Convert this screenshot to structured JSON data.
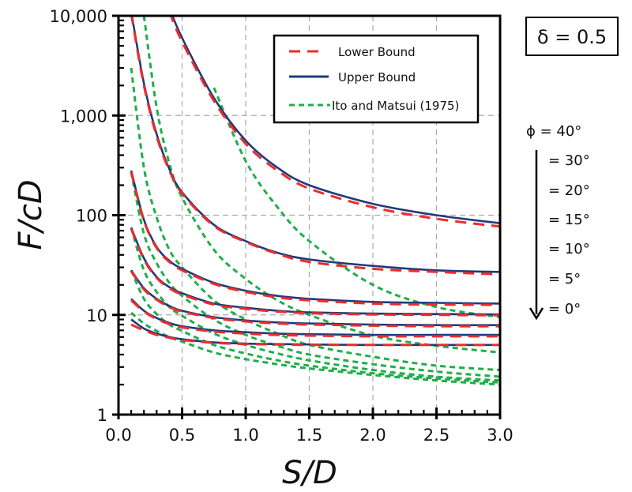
{
  "chart_data": {
    "type": "line",
    "title": "",
    "xlabel": "S/D",
    "ylabel": "F/cD",
    "xlim": [
      0,
      3.0
    ],
    "ylim": [
      1,
      10000
    ],
    "yscale": "log",
    "grid": true,
    "x_ticks": [
      0.0,
      0.5,
      1.0,
      1.5,
      2.0,
      2.5,
      3.0
    ],
    "x_tick_labels": [
      "0.0",
      "0.5",
      "1.0",
      "1.5",
      "2.0",
      "2.5",
      "3.0"
    ],
    "y_ticks": [
      1,
      10,
      100,
      1000,
      10000
    ],
    "y_tick_labels": [
      "1",
      "10",
      "100",
      "1,000",
      "10,000"
    ],
    "legend": {
      "placement": "top-center",
      "entries": [
        {
          "label": "Lower Bound",
          "color": "#ee2b2b",
          "style": "dashed"
        },
        {
          "label": "Upper Bound",
          "color": "#1f3a78",
          "style": "solid"
        },
        {
          "label": "Ito and Matsui (1975)",
          "color": "#1fae4a",
          "style": "dotted-dashed"
        }
      ]
    },
    "annotation_delta": "δ = 0.5",
    "phi_labels": [
      "ϕ = 40°",
      "= 30°",
      "= 20°",
      "= 15°",
      "= 10°",
      "= 5°",
      "= 0°"
    ],
    "x": [
      0.1,
      0.2,
      0.3,
      0.4,
      0.5,
      0.75,
      1.0,
      1.25,
      1.5,
      2.0,
      2.5,
      3.0
    ],
    "series": [
      {
        "name": "Upper Bound φ=40°",
        "group": "upper",
        "values": [
          null,
          null,
          null,
          12000,
          6000,
          1500,
          560,
          300,
          200,
          130,
          100,
          83
        ]
      },
      {
        "name": "Lower Bound φ=40°",
        "group": "lower",
        "values": [
          null,
          null,
          null,
          11000,
          5500,
          1400,
          520,
          280,
          185,
          120,
          92,
          77
        ]
      },
      {
        "name": "Ito and Matsui φ=40°",
        "group": "ito",
        "values": [
          null,
          null,
          null,
          null,
          null,
          1900,
          350,
          120,
          55,
          20,
          12,
          9.5
        ]
      },
      {
        "name": "Upper Bound φ=30°",
        "group": "upper",
        "values": [
          11000,
          2100,
          650,
          290,
          170,
          80,
          55,
          42,
          36,
          31,
          28,
          27
        ]
      },
      {
        "name": "Lower Bound φ=30°",
        "group": "lower",
        "values": [
          10500,
          2000,
          620,
          280,
          165,
          78,
          54,
          41,
          34,
          29,
          27,
          25.5
        ]
      },
      {
        "name": "Ito and Matsui φ=30°",
        "group": "ito",
        "values": [
          null,
          10000,
          1200,
          330,
          150,
          45,
          23,
          14,
          10,
          6.2,
          4.9,
          4.2
        ]
      },
      {
        "name": "Upper Bound φ=20°",
        "group": "upper",
        "values": [
          280,
          90,
          48,
          35,
          29,
          21,
          17.5,
          15.5,
          14.5,
          13.5,
          13.2,
          13
        ]
      },
      {
        "name": "Lower Bound φ=20°",
        "group": "lower",
        "values": [
          270,
          88,
          47,
          34,
          28,
          20.5,
          17,
          15,
          14,
          13,
          12.7,
          12.6
        ]
      },
      {
        "name": "Ito and Matsui φ=20°",
        "group": "ito",
        "values": [
          3000,
          300,
          95,
          45,
          30,
          14,
          9,
          6.5,
          5,
          3.8,
          3.1,
          2.8
        ]
      },
      {
        "name": "Upper Bound φ=15°",
        "group": "upper",
        "values": [
          75,
          37,
          24,
          19,
          16.5,
          13,
          11.8,
          11,
          10.6,
          10.3,
          10.2,
          10.1
        ]
      },
      {
        "name": "Lower Bound φ=15°",
        "group": "lower",
        "values": [
          73,
          36,
          23.5,
          18.5,
          16,
          12.7,
          11.5,
          10.8,
          10.4,
          10.1,
          10,
          9.9
        ]
      },
      {
        "name": "Ito and Matsui φ=15°",
        "group": "ito",
        "values": [
          270,
          65,
          33,
          21,
          15.5,
          9,
          6.3,
          4.9,
          4,
          3.2,
          2.7,
          2.4
        ]
      },
      {
        "name": "Upper Bound φ=10°",
        "group": "upper",
        "values": [
          28,
          18.5,
          14.5,
          12.3,
          11,
          9.5,
          8.8,
          8.4,
          8.2,
          8.0,
          7.9,
          7.9
        ]
      },
      {
        "name": "Lower Bound φ=10°",
        "group": "lower",
        "values": [
          27.5,
          18,
          14.2,
          12,
          10.8,
          9.3,
          8.6,
          8.2,
          8.0,
          7.8,
          7.7,
          7.7
        ]
      },
      {
        "name": "Ito and Matsui φ=10°",
        "group": "ito",
        "values": [
          75,
          28,
          17,
          12,
          9.8,
          6.5,
          5,
          4.1,
          3.5,
          2.8,
          2.4,
          2.2
        ]
      },
      {
        "name": "Upper Bound φ=5°",
        "group": "upper",
        "values": [
          14.5,
          11,
          9.3,
          8.3,
          7.7,
          7,
          6.7,
          6.5,
          6.4,
          6.3,
          6.3,
          6.3
        ]
      },
      {
        "name": "Lower Bound φ=5°",
        "group": "lower",
        "values": [
          14,
          10.8,
          9.1,
          8.1,
          7.5,
          6.8,
          6.5,
          6.3,
          6.2,
          6.1,
          6.1,
          6.1
        ]
      },
      {
        "name": "Ito and Matsui φ=5°",
        "group": "ito",
        "values": [
          28,
          14.5,
          10.2,
          8,
          6.9,
          5,
          4.1,
          3.5,
          3.1,
          2.6,
          2.3,
          2.1
        ]
      },
      {
        "name": "Upper Bound φ=0°",
        "group": "upper",
        "values": [
          9,
          7.3,
          6.5,
          6,
          5.7,
          5.3,
          5.15,
          5.1,
          5.05,
          5.0,
          5.0,
          5.0
        ]
      },
      {
        "name": "Lower Bound φ=0°",
        "group": "lower",
        "values": [
          8,
          7,
          6.3,
          5.9,
          5.6,
          5.25,
          5.1,
          5.05,
          5.0,
          5.0,
          5.0,
          5.0
        ]
      },
      {
        "name": "Ito and Matsui φ=0°",
        "group": "ito",
        "values": [
          10.5,
          8.2,
          6.9,
          6,
          5.4,
          4.2,
          3.6,
          3.2,
          2.9,
          2.5,
          2.2,
          2.0
        ]
      }
    ]
  }
}
